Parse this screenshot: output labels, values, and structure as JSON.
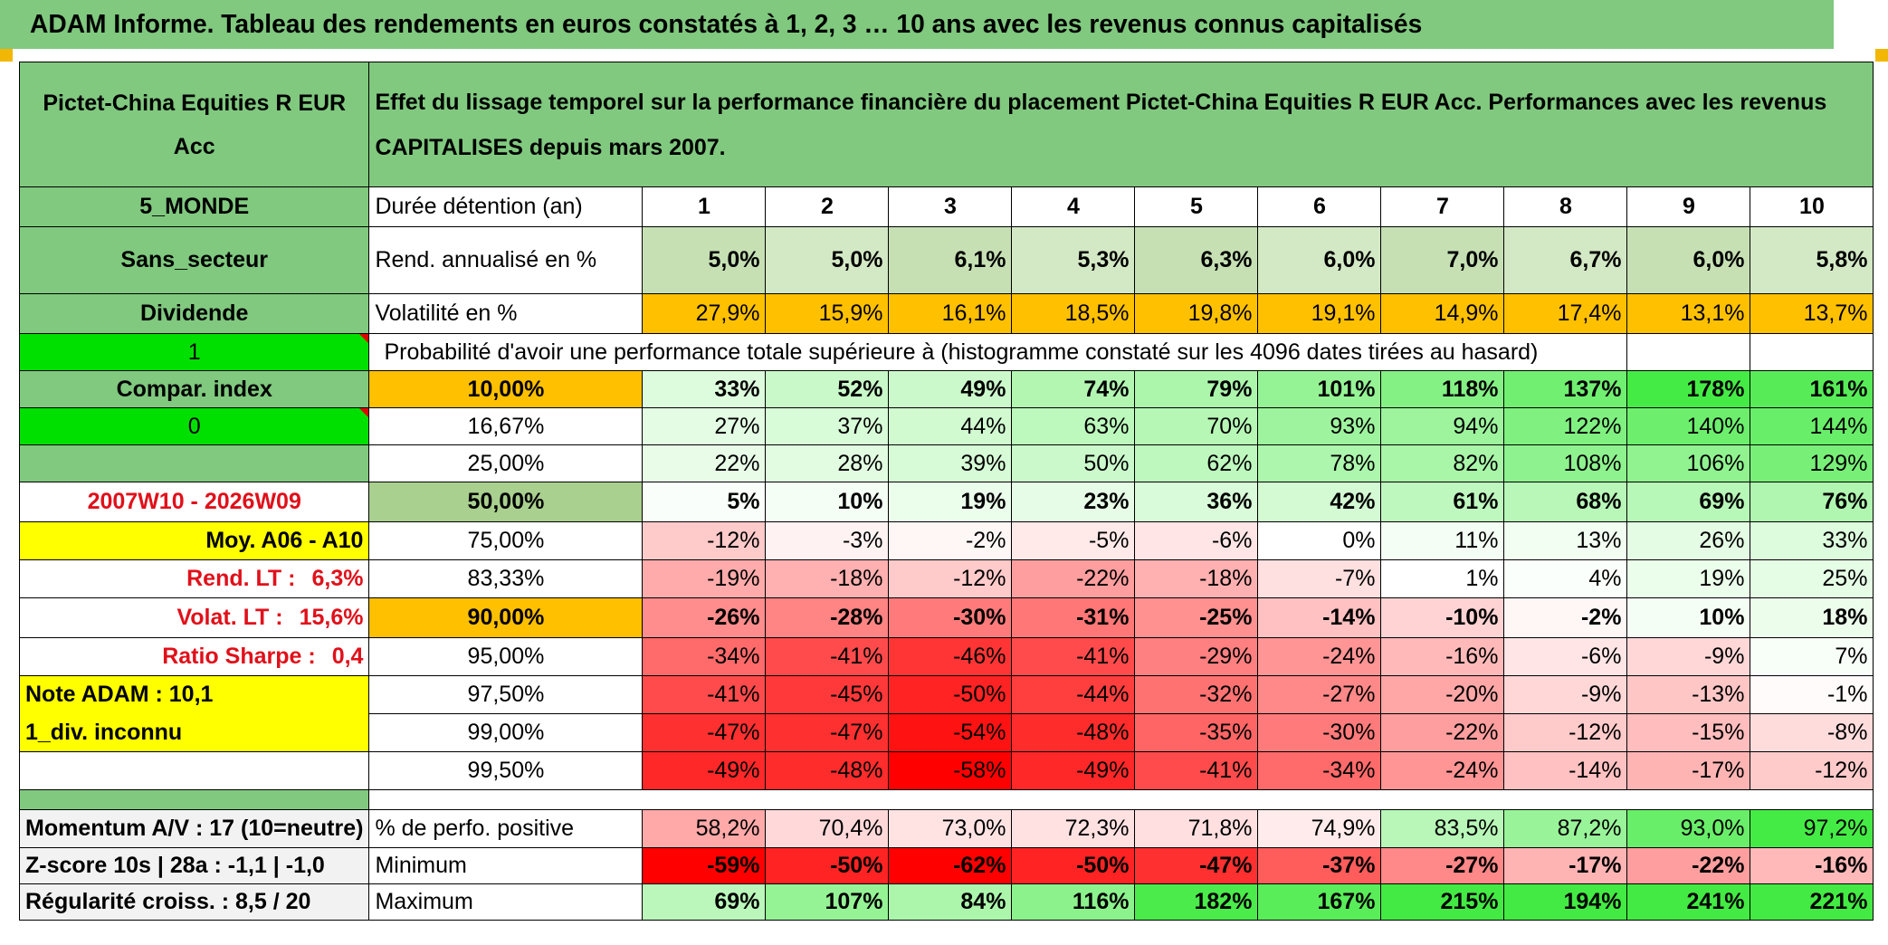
{
  "title": "ADAM Informe. Tableau des rendements en euros constatés à 1, 2, 3 … 10 ans avec les revenus connus capitalisés",
  "fund_name": "Pictet-China Equities R EUR Acc",
  "description": "Effet du lissage temporel sur la performance financière du placement Pictet-China Equities R EUR Acc. Performances avec les revenus CAPITALISES depuis mars 2007.",
  "left_labels": {
    "zone": "5_MONDE",
    "sector": "Sans_secteur",
    "dividend": "Dividende",
    "dividend_value": "1",
    "compar_index": "Compar. index",
    "compar_value": "0",
    "period": "2007W10 - 2026W09",
    "moy": "Moy. A06 - A10",
    "rend_lt_label": "Rend. LT :",
    "rend_lt_value": "6,3%",
    "volat_lt_label": "Volat. LT :",
    "volat_lt_value": "15,6%",
    "sharpe_label": "Ratio Sharpe :",
    "sharpe_value": "0,4",
    "note_adam": "Note ADAM : 10,1",
    "div_inconnu": "1_div. inconnu"
  },
  "row_labels": {
    "duration": "Durée détention (an)",
    "rend": "Rend. annualisé en %",
    "vol": "Volatilité en %",
    "proba": "Probabilité d'avoir une performance totale supérieure à (histogramme constaté sur les 4096 dates tirées au hasard)",
    "pct_pos": "% de perfo. positive",
    "min": "Minimum",
    "max": "Maximum"
  },
  "bottom_left": {
    "momentum": "Momentum A/V : 17 (10=neutre)",
    "zscore": "Z-score 10s | 28a : -1,1 | -1,0",
    "regularite": "Régularité croiss. : 8,5 / 20"
  },
  "years": [
    "1",
    "2",
    "3",
    "4",
    "5",
    "6",
    "7",
    "8",
    "9",
    "10"
  ],
  "rend": [
    "5,0%",
    "5,0%",
    "6,1%",
    "5,3%",
    "6,3%",
    "6,0%",
    "7,0%",
    "6,7%",
    "6,0%",
    "5,8%"
  ],
  "vol": [
    "27,9%",
    "15,9%",
    "16,1%",
    "18,5%",
    "19,8%",
    "19,1%",
    "14,9%",
    "17,4%",
    "13,1%",
    "13,7%"
  ],
  "quantiles": [
    {
      "q": "10,00%",
      "vals": [
        "33%",
        "52%",
        "49%",
        "74%",
        "79%",
        "101%",
        "118%",
        "137%",
        "178%",
        "161%"
      ]
    },
    {
      "q": "16,67%",
      "vals": [
        "27%",
        "37%",
        "44%",
        "63%",
        "70%",
        "93%",
        "94%",
        "122%",
        "140%",
        "144%"
      ]
    },
    {
      "q": "25,00%",
      "vals": [
        "22%",
        "28%",
        "39%",
        "50%",
        "62%",
        "78%",
        "82%",
        "108%",
        "106%",
        "129%"
      ]
    },
    {
      "q": "50,00%",
      "vals": [
        "5%",
        "10%",
        "19%",
        "23%",
        "36%",
        "42%",
        "61%",
        "68%",
        "69%",
        "76%"
      ]
    },
    {
      "q": "75,00%",
      "vals": [
        "-12%",
        "-3%",
        "-2%",
        "-5%",
        "-6%",
        "0%",
        "11%",
        "13%",
        "26%",
        "33%"
      ]
    },
    {
      "q": "83,33%",
      "vals": [
        "-19%",
        "-18%",
        "-12%",
        "-22%",
        "-18%",
        "-7%",
        "1%",
        "4%",
        "19%",
        "25%"
      ]
    },
    {
      "q": "90,00%",
      "vals": [
        "-26%",
        "-28%",
        "-30%",
        "-31%",
        "-25%",
        "-14%",
        "-10%",
        "-2%",
        "10%",
        "18%"
      ]
    },
    {
      "q": "95,00%",
      "vals": [
        "-34%",
        "-41%",
        "-46%",
        "-41%",
        "-29%",
        "-24%",
        "-16%",
        "-6%",
        "-9%",
        "7%"
      ]
    },
    {
      "q": "97,50%",
      "vals": [
        "-41%",
        "-45%",
        "-50%",
        "-44%",
        "-32%",
        "-27%",
        "-20%",
        "-9%",
        "-13%",
        "-1%"
      ]
    },
    {
      "q": "99,00%",
      "vals": [
        "-47%",
        "-47%",
        "-54%",
        "-48%",
        "-35%",
        "-30%",
        "-22%",
        "-12%",
        "-15%",
        "-8%"
      ]
    },
    {
      "q": "99,50%",
      "vals": [
        "-49%",
        "-48%",
        "-58%",
        "-49%",
        "-41%",
        "-34%",
        "-24%",
        "-14%",
        "-17%",
        "-12%"
      ]
    }
  ],
  "pct_pos": [
    "58,2%",
    "70,4%",
    "73,0%",
    "72,3%",
    "71,8%",
    "74,9%",
    "83,5%",
    "87,2%",
    "93,0%",
    "97,2%"
  ],
  "min": [
    "-59%",
    "-50%",
    "-62%",
    "-50%",
    "-47%",
    "-37%",
    "-27%",
    "-17%",
    "-22%",
    "-16%"
  ],
  "max": [
    "69%",
    "107%",
    "84%",
    "116%",
    "182%",
    "167%",
    "215%",
    "194%",
    "241%",
    "221%"
  ],
  "colors": {
    "title_green": "#80c97f",
    "header_green": "#80c97f",
    "bright_green": "#00e000",
    "yellow": "#ffff00",
    "orange": "#ffc000",
    "red_text": "#e0101a",
    "pos_max": "#2ee82e",
    "neg_max": "#ff0000"
  }
}
